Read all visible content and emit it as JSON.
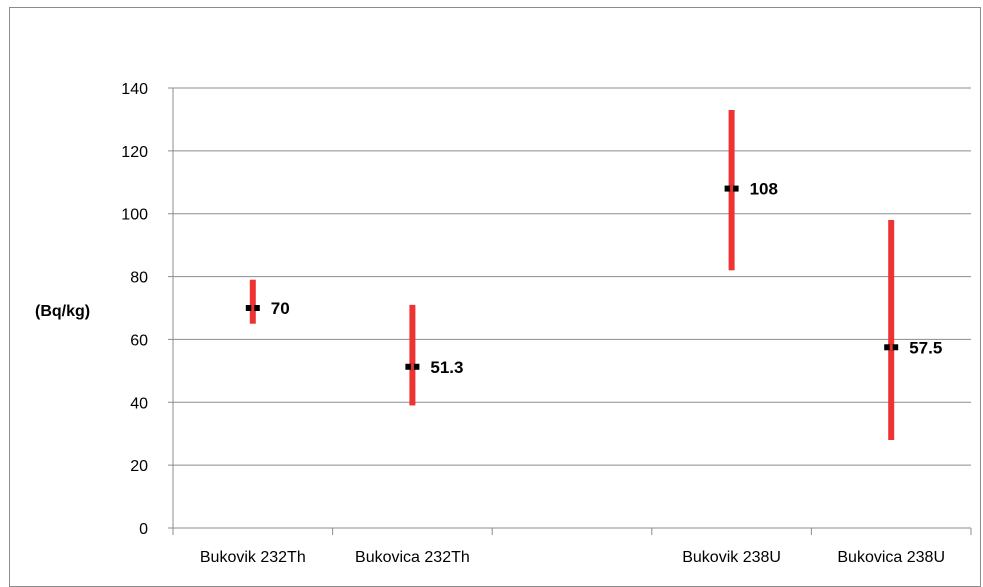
{
  "chart_data": {
    "type": "error-bar",
    "title": "",
    "xlabel": "",
    "ylabel": "(Bq/kg)",
    "ylim": [
      0,
      140
    ],
    "yticks": [
      0,
      20,
      40,
      60,
      80,
      100,
      120,
      140
    ],
    "grid": true,
    "legend": "none",
    "categories": [
      "Bukovik 232Th",
      "Bukovica 232Th",
      "",
      "Bukovik 238U",
      "Bukovica 238U"
    ],
    "points": [
      {
        "category": "Bukovik 232Th",
        "value": 70,
        "low": 65,
        "high": 79,
        "label": "70"
      },
      {
        "category": "Bukovica 232Th",
        "value": 51.3,
        "low": 39,
        "high": 71,
        "label": "51.3"
      },
      {
        "category": "Bukovik 238U",
        "value": 108,
        "low": 82,
        "high": 133,
        "label": "108"
      },
      {
        "category": "Bukovica 238U",
        "value": 57.5,
        "low": 28,
        "high": 98,
        "label": "57.5"
      }
    ],
    "colors": {
      "range_bar": "#ee3333",
      "marker": "#000000",
      "grid": "#8c8c8c"
    }
  }
}
